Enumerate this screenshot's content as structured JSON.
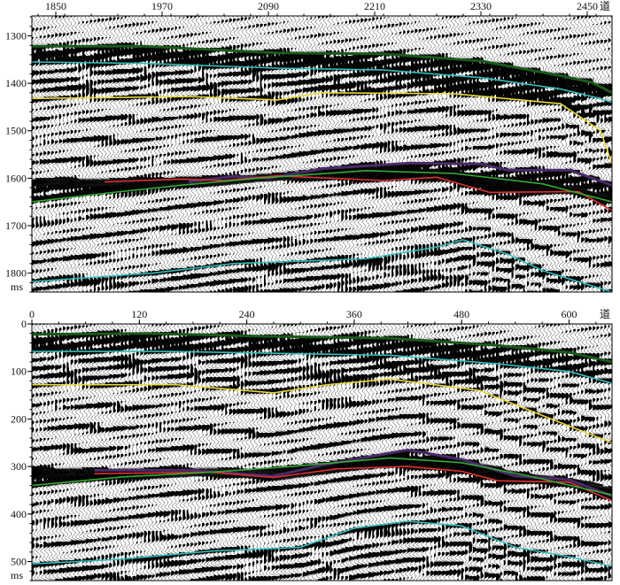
{
  "chart_data": [
    {
      "type": "seismic-section",
      "x_unit": "道",
      "y_unit": "ms",
      "x_ticks": [
        1850,
        1970,
        2090,
        2210,
        2330,
        2450
      ],
      "y_ticks": [
        1300,
        1400,
        1500,
        1600,
        1700,
        1800
      ],
      "xlim": [
        1823,
        2478
      ],
      "ylim": [
        1258,
        1840
      ],
      "horizons": [
        {
          "color": "#1a5a1a",
          "points": [
            [
              1823,
              1322
            ],
            [
              1950,
              1322
            ],
            [
              2100,
              1336
            ],
            [
              2220,
              1338
            ],
            [
              2330,
              1353
            ],
            [
              2420,
              1384
            ],
            [
              2455,
              1398
            ],
            [
              2478,
              1420
            ]
          ]
        },
        {
          "color": "#33bbbb",
          "points": [
            [
              1823,
              1355
            ],
            [
              1950,
              1358
            ],
            [
              2100,
              1368
            ],
            [
              2220,
              1372
            ],
            [
              2330,
              1388
            ],
            [
              2420,
              1412
            ],
            [
              2460,
              1430
            ],
            [
              2478,
              1440
            ]
          ]
        },
        {
          "color": "#e8d83a",
          "points": [
            [
              1823,
              1432
            ],
            [
              2000,
              1428
            ],
            [
              2100,
              1435
            ],
            [
              2150,
              1420
            ],
            [
              2300,
              1422
            ],
            [
              2420,
              1443
            ],
            [
              2465,
              1500
            ],
            [
              2478,
              1570
            ]
          ]
        },
        {
          "color": "#4a2a6a",
          "points": [
            [
              2000,
              1608
            ],
            [
              2050,
              1596
            ],
            [
              2090,
              1600
            ],
            [
              2150,
              1580
            ],
            [
              2250,
              1568
            ],
            [
              2330,
              1570
            ],
            [
              2360,
              1583
            ],
            [
              2430,
              1583
            ],
            [
              2478,
              1615
            ]
          ]
        },
        {
          "color": "#e03030",
          "points": [
            [
              1905,
              1608
            ],
            [
              1990,
              1602
            ],
            [
              2040,
              1605
            ],
            [
              2100,
              1595
            ],
            [
              2220,
              1605
            ],
            [
              2280,
              1598
            ],
            [
              2340,
              1630
            ],
            [
              2440,
              1628
            ],
            [
              2478,
              1668
            ]
          ]
        },
        {
          "color": "#33aa33",
          "points": [
            [
              1823,
              1650
            ],
            [
              1900,
              1633
            ],
            [
              1990,
              1615
            ],
            [
              2080,
              1600
            ],
            [
              2200,
              1584
            ],
            [
              2300,
              1590
            ],
            [
              2400,
              1612
            ],
            [
              2478,
              1650
            ]
          ]
        },
        {
          "color": "#33bbbb",
          "points": [
            [
              1823,
              1818
            ],
            [
              1960,
              1800
            ],
            [
              2050,
              1780
            ],
            [
              2200,
              1770
            ],
            [
              2280,
              1745
            ],
            [
              2310,
              1730
            ],
            [
              2360,
              1760
            ],
            [
              2400,
              1795
            ],
            [
              2478,
              1840
            ]
          ]
        }
      ]
    },
    {
      "type": "seismic-section",
      "x_unit": "道",
      "y_unit": "ms",
      "x_ticks": [
        0,
        120,
        240,
        360,
        480,
        600
      ],
      "y_ticks": [
        0,
        100,
        200,
        300,
        400,
        500
      ],
      "xlim": [
        0,
        648
      ],
      "ylim": [
        0,
        540
      ],
      "horizons": [
        {
          "color": "#1a5a1a",
          "points": [
            [
              0,
              22
            ],
            [
              130,
              20
            ],
            [
              260,
              26
            ],
            [
              400,
              30
            ],
            [
              520,
              45
            ],
            [
              600,
              60
            ],
            [
              648,
              80
            ]
          ]
        },
        {
          "color": "#33bbbb",
          "points": [
            [
              0,
              58
            ],
            [
              150,
              58
            ],
            [
              280,
              62
            ],
            [
              400,
              66
            ],
            [
              520,
              84
            ],
            [
              600,
              100
            ],
            [
              648,
              125
            ]
          ]
        },
        {
          "color": "#e8d83a",
          "points": [
            [
              0,
              128
            ],
            [
              160,
              128
            ],
            [
              270,
              145
            ],
            [
              330,
              128
            ],
            [
              400,
              116
            ],
            [
              500,
              140
            ],
            [
              580,
              200
            ],
            [
              648,
              250
            ]
          ]
        },
        {
          "color": "#4a2a6a",
          "points": [
            [
              70,
              308
            ],
            [
              180,
              308
            ],
            [
              270,
              320
            ],
            [
              330,
              295
            ],
            [
              420,
              265
            ],
            [
              480,
              285
            ],
            [
              540,
              320
            ],
            [
              600,
              328
            ],
            [
              648,
              362
            ]
          ]
        },
        {
          "color": "#e03030",
          "points": [
            [
              70,
              315
            ],
            [
              200,
              312
            ],
            [
              270,
              323
            ],
            [
              340,
              305
            ],
            [
              420,
              300
            ],
            [
              480,
              310
            ],
            [
              520,
              330
            ],
            [
              600,
              333
            ],
            [
              648,
              372
            ]
          ]
        },
        {
          "color": "#33aa33",
          "points": [
            [
              0,
              340
            ],
            [
              100,
              322
            ],
            [
              200,
              312
            ],
            [
              290,
              300
            ],
            [
              400,
              282
            ],
            [
              480,
              292
            ],
            [
              560,
              322
            ],
            [
              648,
              360
            ]
          ]
        },
        {
          "color": "#33bbbb",
          "points": [
            [
              0,
              505
            ],
            [
              100,
              495
            ],
            [
              200,
              478
            ],
            [
              300,
              470
            ],
            [
              360,
              430
            ],
            [
              420,
              415
            ],
            [
              480,
              425
            ],
            [
              540,
              470
            ],
            [
              600,
              490
            ],
            [
              648,
              510
            ]
          ]
        }
      ]
    }
  ]
}
